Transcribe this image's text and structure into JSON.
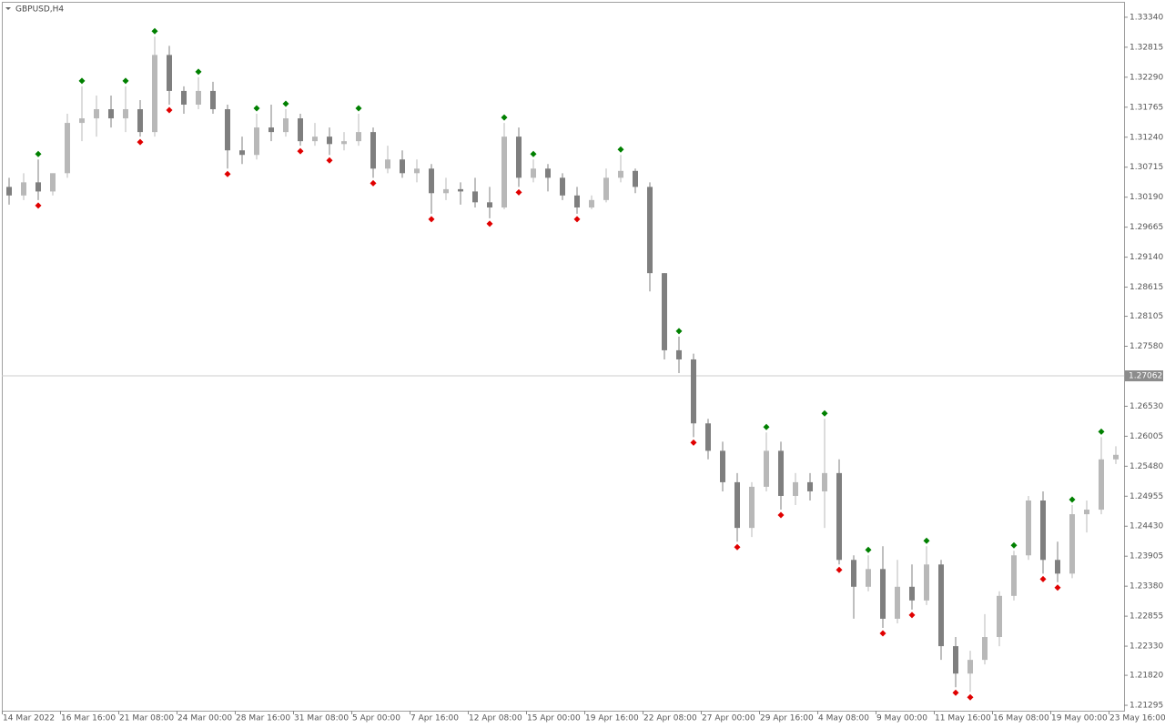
{
  "chart_data": {
    "type": "candlestick",
    "title": "GBPUSD,H4",
    "up_color": "#b8b8b8",
    "down_color": "#7f7f7f",
    "fractal_up_color": "#008000",
    "fractal_down_color": "#e00000",
    "price_line": 1.27062,
    "price_line_color": "#cccccc",
    "price_label_color": "#8c8c8c",
    "ylim": [
      1.212,
      1.3361
    ],
    "yticks": [
      {
        "value": 1.3334,
        "label": "1.33340"
      },
      1.32815,
      {
        "value": 1.3229,
        "label": "1.32290"
      },
      {
        "value": 1.31765,
        "label": "1.31765"
      },
      {
        "value": 1.3124,
        "label": "1.31240"
      },
      1.30715,
      {
        "value": 1.3019,
        "label": "1.30190"
      },
      1.29665,
      {
        "value": 1.2914,
        "label": "1.29140"
      },
      1.28615,
      1.28105,
      {
        "value": 1.2758,
        "label": "1.27580"
      },
      {
        "value": 1.2653,
        "label": "1.26530"
      },
      1.26005,
      {
        "value": 1.2548,
        "label": "1.25480"
      },
      1.24955,
      {
        "value": 1.2443,
        "label": "1.24430"
      },
      1.23905,
      {
        "value": 1.2338,
        "label": "1.23380"
      },
      1.22855,
      {
        "value": 1.2233,
        "label": "1.22330"
      },
      {
        "value": 1.2182,
        "label": "1.21820"
      },
      1.21295
    ],
    "categories": [
      "14 Mar 2022",
      null,
      null,
      null,
      "16 Mar 16:00",
      null,
      null,
      null,
      "21 Mar 08:00",
      null,
      null,
      null,
      "24 Mar 00:00",
      null,
      null,
      null,
      "28 Mar 16:00",
      null,
      null,
      null,
      "31 Mar 08:00",
      null,
      null,
      null,
      "5 Apr 00:00",
      null,
      null,
      null,
      "7 Apr 16:00",
      null,
      null,
      null,
      "12 Apr 08:00",
      null,
      null,
      null,
      "15 Apr 00:00",
      null,
      null,
      null,
      "19 Apr 16:00",
      null,
      null,
      null,
      "22 Apr 08:00",
      null,
      null,
      null,
      "27 Apr 00:00",
      null,
      null,
      null,
      "29 Apr 16:00",
      null,
      null,
      null,
      "4 May 08:00",
      null,
      null,
      null,
      "9 May 00:00",
      null,
      null,
      null,
      "11 May 16:00",
      null,
      null,
      null,
      "16 May 08:00",
      null,
      null,
      null,
      "19 May 00:00",
      null,
      null,
      null,
      "23 May 16:00"
    ],
    "ohlc": [
      [
        1.3037,
        1.3053,
        1.3006,
        1.3022
      ],
      [
        1.3022,
        1.3061,
        1.3014,
        1.3045
      ],
      [
        1.3045,
        1.3085,
        1.3014,
        1.3029
      ],
      [
        1.3029,
        1.3061,
        1.3022,
        1.3061
      ],
      [
        1.3061,
        1.3165,
        1.3053,
        1.3149
      ],
      [
        1.3149,
        1.3213,
        1.3117,
        1.3157
      ],
      [
        1.3157,
        1.3197,
        1.3125,
        1.3173
      ],
      [
        1.3173,
        1.3197,
        1.3141,
        1.3157
      ],
      [
        1.3157,
        1.3213,
        1.3133,
        1.3173
      ],
      [
        1.3173,
        1.3189,
        1.3125,
        1.3133
      ],
      [
        1.3133,
        1.33,
        1.3125,
        1.3268
      ],
      [
        1.3268,
        1.3284,
        1.3181,
        1.3205
      ],
      [
        1.3205,
        1.3213,
        1.3165,
        1.3181
      ],
      [
        1.3181,
        1.3229,
        1.3173,
        1.3205
      ],
      [
        1.3205,
        1.3221,
        1.3165,
        1.3173
      ],
      [
        1.3173,
        1.3181,
        1.3069,
        1.3101
      ],
      [
        1.3101,
        1.3125,
        1.3077,
        1.3093
      ],
      [
        1.3093,
        1.3165,
        1.3085,
        1.3141
      ],
      [
        1.3141,
        1.3181,
        1.3117,
        1.3133
      ],
      [
        1.3133,
        1.3173,
        1.3125,
        1.3157
      ],
      [
        1.3157,
        1.3165,
        1.3109,
        1.3117
      ],
      [
        1.3117,
        1.3149,
        1.3109,
        1.3125
      ],
      [
        1.3125,
        1.3141,
        1.3093,
        1.3112
      ],
      [
        1.3112,
        1.3133,
        1.3101,
        1.3117
      ],
      [
        1.3117,
        1.3165,
        1.3109,
        1.3133
      ],
      [
        1.3133,
        1.3141,
        1.3053,
        1.3069
      ],
      [
        1.3069,
        1.3109,
        1.3061,
        1.3085
      ],
      [
        1.3085,
        1.3101,
        1.3053,
        1.3061
      ],
      [
        1.3061,
        1.3085,
        1.3045,
        1.3069
      ],
      [
        1.3069,
        1.3077,
        1.299,
        1.3026
      ],
      [
        1.3026,
        1.3053,
        1.3014,
        1.3033
      ],
      [
        1.3033,
        1.3045,
        1.3006,
        1.3029
      ],
      [
        1.3029,
        1.3053,
        1.3001,
        1.301
      ],
      [
        1.301,
        1.3037,
        1.2982,
        1.3001
      ],
      [
        1.3001,
        1.3149,
        1.2998,
        1.3125
      ],
      [
        1.3125,
        1.3141,
        1.3037,
        1.3053
      ],
      [
        1.3053,
        1.3085,
        1.3045,
        1.3069
      ],
      [
        1.3069,
        1.3077,
        1.3029,
        1.3053
      ],
      [
        1.3053,
        1.3061,
        1.3014,
        1.3022
      ],
      [
        1.3022,
        1.3037,
        1.299,
        1.3001
      ],
      [
        1.3001,
        1.3022,
        1.2998,
        1.3014
      ],
      [
        1.3014,
        1.3069,
        1.301,
        1.3053
      ],
      [
        1.3053,
        1.3093,
        1.3045,
        1.3065
      ],
      [
        1.3065,
        1.3069,
        1.3026,
        1.3037
      ],
      [
        1.3037,
        1.3045,
        1.2854,
        1.2886
      ],
      [
        1.2886,
        1.2886,
        1.2735,
        1.2751
      ],
      [
        1.2751,
        1.2775,
        1.2711,
        1.2735
      ],
      [
        1.2735,
        1.2745,
        1.2599,
        1.2623
      ],
      [
        1.2623,
        1.2631,
        1.256,
        1.2575
      ],
      [
        1.2575,
        1.2591,
        1.2504,
        1.252
      ],
      [
        1.252,
        1.2536,
        1.2416,
        1.244
      ],
      [
        1.244,
        1.252,
        1.2424,
        1.2512
      ],
      [
        1.2512,
        1.2607,
        1.2504,
        1.2575
      ],
      [
        1.2575,
        1.2591,
        1.2472,
        1.2496
      ],
      [
        1.2496,
        1.2536,
        1.248,
        1.252
      ],
      [
        1.252,
        1.2536,
        1.2488,
        1.2504
      ],
      [
        1.2504,
        1.2631,
        1.244,
        1.2536
      ],
      [
        1.2536,
        1.256,
        1.2376,
        1.2384
      ],
      [
        1.2384,
        1.2392,
        1.2281,
        1.2337
      ],
      [
        1.2337,
        1.2392,
        1.2329,
        1.2368
      ],
      [
        1.2368,
        1.2408,
        1.2265,
        1.2281
      ],
      [
        1.2281,
        1.2384,
        1.2273,
        1.2337
      ],
      [
        1.2337,
        1.2376,
        1.2297,
        1.2313
      ],
      [
        1.2313,
        1.2408,
        1.2305,
        1.2376
      ],
      [
        1.2376,
        1.2384,
        1.2209,
        1.2233
      ],
      [
        1.2233,
        1.2249,
        1.2161,
        1.2185
      ],
      [
        1.2185,
        1.2225,
        1.2153,
        1.2209
      ],
      [
        1.2209,
        1.2289,
        1.2201,
        1.2249
      ],
      [
        1.2249,
        1.2329,
        1.2233,
        1.2321
      ],
      [
        1.2321,
        1.24,
        1.2313,
        1.2392
      ],
      [
        1.2392,
        1.2496,
        1.2384,
        1.2488
      ],
      [
        1.2488,
        1.2504,
        1.236,
        1.2384
      ],
      [
        1.2384,
        1.2416,
        1.2345,
        1.236
      ],
      [
        1.236,
        1.248,
        1.2352,
        1.2464
      ],
      [
        1.2464,
        1.2488,
        1.2432,
        1.2472
      ],
      [
        1.2472,
        1.2599,
        1.2464,
        1.256
      ],
      [
        1.256,
        1.2583,
        1.2552,
        1.2568
      ]
    ],
    "fractal_up": [
      null,
      null,
      1.3085,
      null,
      null,
      1.3213,
      null,
      null,
      1.3213,
      null,
      1.33,
      null,
      null,
      1.3229,
      null,
      null,
      null,
      1.3165,
      null,
      1.3173,
      null,
      null,
      null,
      null,
      1.3165,
      null,
      null,
      null,
      null,
      null,
      null,
      null,
      null,
      null,
      1.3149,
      null,
      1.3085,
      null,
      null,
      null,
      null,
      null,
      1.3093,
      null,
      null,
      null,
      1.2775,
      null,
      null,
      null,
      null,
      null,
      1.2607,
      null,
      null,
      null,
      1.2631,
      null,
      null,
      1.2392,
      null,
      null,
      null,
      1.2408,
      null,
      null,
      null,
      null,
      null,
      1.24,
      null,
      null,
      null,
      1.248,
      null,
      1.2599,
      null
    ],
    "fractal_down": [
      null,
      null,
      1.3014,
      null,
      null,
      null,
      null,
      null,
      null,
      1.3125,
      null,
      1.3181,
      null,
      null,
      null,
      1.3069,
      null,
      null,
      null,
      null,
      1.3109,
      null,
      1.3093,
      null,
      null,
      1.3053,
      null,
      null,
      null,
      1.299,
      null,
      null,
      null,
      1.2982,
      null,
      1.3037,
      null,
      null,
      null,
      1.299,
      null,
      null,
      null,
      null,
      null,
      null,
      null,
      1.2599,
      null,
      null,
      1.2416,
      null,
      null,
      1.2472,
      null,
      null,
      null,
      1.2376,
      null,
      null,
      1.2265,
      null,
      1.2297,
      null,
      null,
      1.2161,
      1.2153,
      null,
      null,
      null,
      null,
      1.236,
      1.2345,
      null,
      null,
      null,
      null
    ]
  }
}
